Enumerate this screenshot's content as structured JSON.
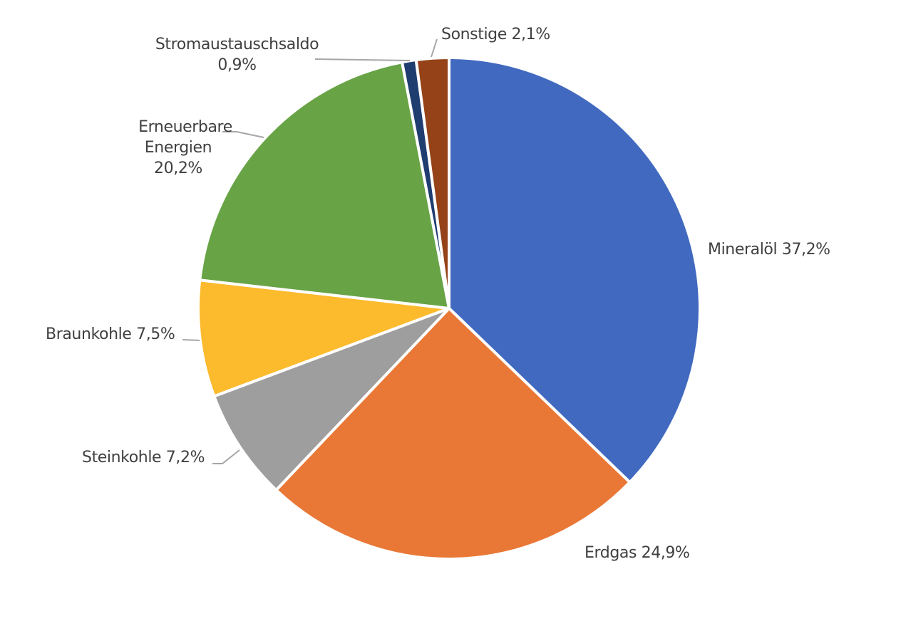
{
  "chart_data": {
    "type": "pie",
    "title": "",
    "start_angle_deg": 0,
    "direction": "clockwise",
    "center": [
      630,
      433
    ],
    "radius": 352,
    "categories": [
      "Mineralöl",
      "Erdgas",
      "Steinkohle",
      "Braunkohle",
      "Erneuerbare Energien",
      "Stromaustauschsaldo",
      "Sonstige"
    ],
    "values": [
      37.2,
      24.9,
      7.2,
      7.5,
      20.2,
      0.9,
      2.1
    ],
    "unit": "%",
    "colors": [
      "#4169BF",
      "#E97837",
      "#9E9E9E",
      "#FCBA2D",
      "#68A346",
      "#203D70",
      "#954218"
    ],
    "legend": "none",
    "data_labels": [
      {
        "lines": [
          "Mineralöl 37,2%"
        ]
      },
      {
        "lines": [
          "Erdgas 24,9%"
        ]
      },
      {
        "lines": [
          "Steinkohle 7,2%"
        ]
      },
      {
        "lines": [
          "Braunkohle 7,5%"
        ]
      },
      {
        "lines": [
          "Erneuerbare",
          "Energien",
          "20,2%"
        ]
      },
      {
        "lines": [
          "Stromaustauschsaldo",
          "0,9%"
        ]
      },
      {
        "lines": [
          "Sonstige 2,1%"
        ]
      }
    ]
  },
  "labels": {
    "mineraloel": "Mineralöl 37,2%",
    "erdgas": "Erdgas 24,9%",
    "steinkohle": "Steinkohle 7,2%",
    "braunkohle": "Braunkohle 7,5%",
    "erneuerbare_1": "Erneuerbare",
    "erneuerbare_2": "Energien",
    "erneuerbare_3": "20,2%",
    "strom_1": "Stromaustauschsaldo",
    "strom_2": "0,9%",
    "sonstige": "Sonstige 2,1%"
  }
}
